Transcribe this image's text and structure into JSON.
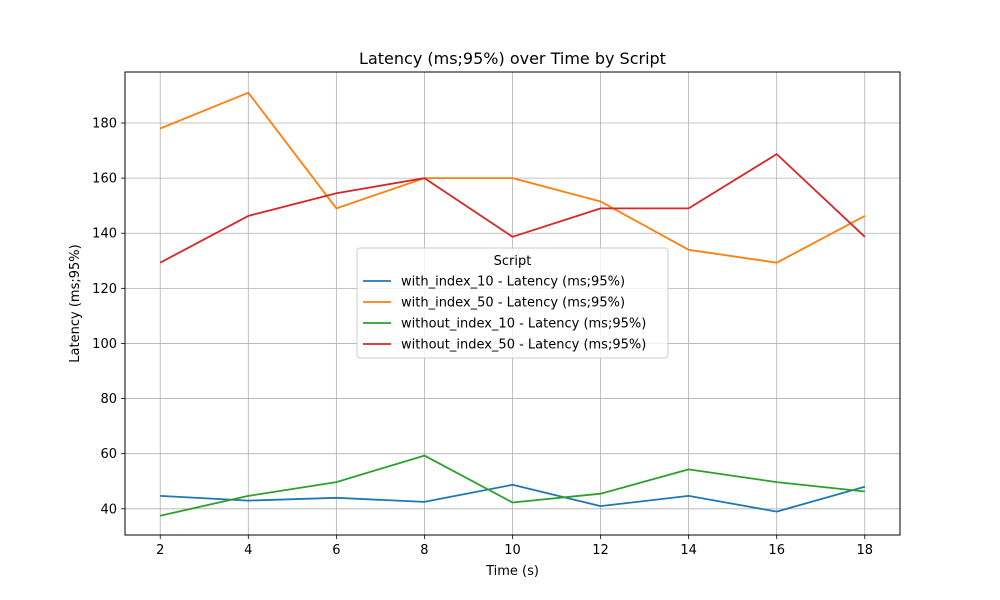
{
  "chart_data": {
    "type": "line",
    "title": "Latency (ms;95%) over Time by Script",
    "xlabel": "Time (s)",
    "ylabel": "Latency (ms;95%)",
    "x": [
      2,
      4,
      6,
      8,
      10,
      12,
      14,
      16,
      18
    ],
    "xlim": [
      1.2,
      18.8
    ],
    "ylim": [
      30.5,
      198.5
    ],
    "xticks": [
      2,
      4,
      6,
      8,
      10,
      12,
      14,
      16,
      18
    ],
    "yticks": [
      40,
      60,
      80,
      100,
      120,
      140,
      160,
      180
    ],
    "grid": true,
    "legend": {
      "title": "Script",
      "placement": "center"
    },
    "series": [
      {
        "name": "with_index_10 - Latency (ms;95%)",
        "color": "#1f77b4",
        "values": [
          44.7,
          43.0,
          44.0,
          42.5,
          48.7,
          41.0,
          44.7,
          39.0,
          48.0
        ]
      },
      {
        "name": "with_index_50 - Latency (ms;95%)",
        "color": "#ff7f0e",
        "values": [
          178.0,
          191.0,
          149.0,
          160.0,
          160.0,
          151.5,
          134.0,
          129.3,
          146.3
        ]
      },
      {
        "name": "without_index_10 - Latency (ms;95%)",
        "color": "#2ca02c",
        "values": [
          37.5,
          44.7,
          49.7,
          59.3,
          42.3,
          45.5,
          54.3,
          49.7,
          46.3
        ]
      },
      {
        "name": "without_index_50 - Latency (ms;95%)",
        "color": "#d62728",
        "values": [
          129.3,
          146.3,
          154.5,
          160.0,
          138.7,
          149.0,
          149.0,
          168.7,
          138.7
        ]
      }
    ]
  }
}
